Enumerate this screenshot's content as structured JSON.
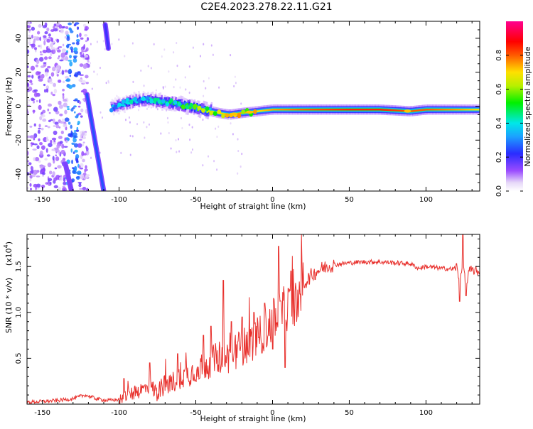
{
  "title": "C2E4.2023.278.22.11.G21",
  "colors": {
    "snr_line": "#e8302c",
    "background": "#ffffff"
  },
  "colorbar": {
    "label": "Normalized spectral amplitude",
    "ticks": [
      0.0,
      0.2,
      0.4,
      0.6,
      0.8
    ],
    "tick_labels": [
      "0.0",
      "0.2",
      "0.4",
      "0.6",
      "0.8"
    ],
    "range": [
      0,
      1
    ],
    "colormap": "rainbow (white-violet-blue-cyan-green-yellow-red-magenta)"
  },
  "chart_data": [
    {
      "type": "heatmap",
      "xlabel": "Height of straight line (km)",
      "ylabel": "Frequency (Hz)",
      "xlim": [
        -160,
        135
      ],
      "ylim": [
        -50,
        50
      ],
      "x_ticks": [
        -150,
        -100,
        -50,
        0,
        50,
        100
      ],
      "x_tick_labels": [
        "-150",
        "-100",
        "-50",
        "0",
        "50",
        "100"
      ],
      "y_ticks": [
        -40,
        -20,
        0,
        20,
        40
      ],
      "y_tick_labels": [
        "-40",
        "-20",
        "0",
        "20",
        "40"
      ],
      "main_track": {
        "x": [
          -105,
          -95,
          -85,
          -75,
          -65,
          -55,
          -45,
          -35,
          -28,
          -20,
          -10,
          0,
          20,
          50,
          70,
          90,
          100,
          120,
          135
        ],
        "y": [
          -1,
          2,
          4,
          3,
          2,
          0,
          -2,
          -4,
          -5,
          -4,
          -3,
          -2,
          -2,
          -2,
          -2,
          -3,
          -2,
          -2,
          -2
        ],
        "amplitude": [
          0.35,
          0.4,
          0.4,
          0.45,
          0.5,
          0.55,
          0.6,
          0.7,
          0.75,
          0.75,
          0.7,
          0.75,
          0.8,
          0.85,
          0.85,
          0.8,
          0.8,
          0.75,
          0.7
        ]
      },
      "diagonal_tracks": [
        {
          "x": [
            -121,
            -110
          ],
          "y": [
            7,
            -50
          ],
          "amplitude": 0.25
        },
        {
          "x": [
            -107,
            -109
          ],
          "y": [
            34,
            48
          ],
          "amplitude": 0.2
        },
        {
          "x": [
            -135,
            -131
          ],
          "y": [
            -34,
            -50
          ],
          "amplitude": 0.15
        }
      ],
      "noise_region": {
        "x": [
          -160,
          -120
        ],
        "y": [
          -50,
          50
        ],
        "amplitude": 0.1
      }
    },
    {
      "type": "line",
      "xlabel": "Height of straight line (km)",
      "ylabel": "SNR (10 * v/v)",
      "y_multiplier": "(x10",
      "y_multiplier_exp": "4",
      "y_multiplier_close": ")",
      "xlim": [
        -160,
        135
      ],
      "ylim": [
        0,
        1.85
      ],
      "x_ticks": [
        -150,
        -100,
        -50,
        0,
        50,
        100
      ],
      "x_tick_labels": [
        "-150",
        "-100",
        "-50",
        "0",
        "50",
        "100"
      ],
      "y_ticks": [
        0.5,
        1.0,
        1.5
      ],
      "y_tick_labels": [
        "0.5",
        "1.0",
        "1.5"
      ],
      "series": [
        {
          "x": [
            -160,
            -140,
            -130,
            -122,
            -115,
            -108,
            -100,
            -95,
            -90,
            -85,
            -80,
            -75,
            -70,
            -65,
            -60,
            -55,
            -50,
            -45,
            -40,
            -35,
            -30,
            -25,
            -20,
            -15,
            -10,
            -5,
            0,
            5,
            10,
            15,
            20,
            25,
            30,
            35,
            40,
            50,
            60,
            70,
            80,
            90,
            95,
            100,
            110,
            118,
            120,
            122,
            124,
            126,
            128,
            130,
            135
          ],
          "y": [
            0.02,
            0.04,
            0.06,
            0.1,
            0.06,
            0.04,
            0.05,
            0.1,
            0.12,
            0.16,
            0.2,
            0.12,
            0.22,
            0.24,
            0.3,
            0.32,
            0.38,
            0.42,
            0.46,
            0.52,
            0.5,
            0.58,
            0.62,
            0.66,
            0.72,
            0.8,
            0.9,
            1.0,
            1.06,
            1.12,
            1.3,
            1.4,
            1.46,
            1.5,
            1.52,
            1.54,
            1.55,
            1.55,
            1.54,
            1.53,
            1.48,
            1.5,
            1.48,
            1.47,
            1.5,
            1.3,
            1.6,
            1.25,
            1.45,
            1.46,
            1.44
          ],
          "spikes": [
            {
              "x": -97,
              "y": 0.28
            },
            {
              "x": -80,
              "y": 0.45
            },
            {
              "x": -62,
              "y": 0.55
            },
            {
              "x": -45,
              "y": 0.75
            },
            {
              "x": -40,
              "y": 0.85
            },
            {
              "x": -32,
              "y": 1.35
            },
            {
              "x": -27,
              "y": 0.9
            },
            {
              "x": -20,
              "y": 0.95
            },
            {
              "x": -12,
              "y": 1.0
            },
            {
              "x": -5,
              "y": 1.1
            },
            {
              "x": 0,
              "y": 0.6
            },
            {
              "x": 4,
              "y": 1.72
            },
            {
              "x": 8,
              "y": 0.4
            },
            {
              "x": 12,
              "y": 1.45
            },
            {
              "x": 18,
              "y": 1.2
            },
            {
              "x": 122,
              "y": 1.12
            },
            {
              "x": 124,
              "y": 1.85
            },
            {
              "x": 126,
              "y": 1.18
            }
          ]
        }
      ]
    }
  ]
}
